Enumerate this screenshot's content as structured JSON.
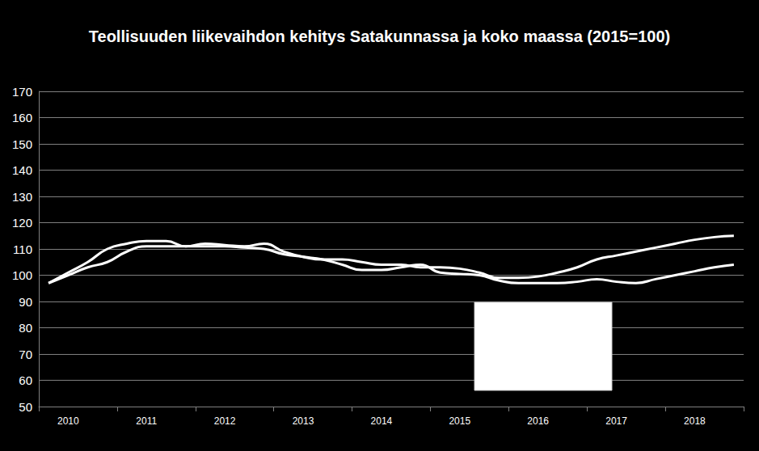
{
  "chart_data": {
    "type": "line",
    "title": "Teollisuuden liikevaihdon kehitys Satakunnassa ja koko maassa (2015=100)",
    "categories": [
      null,
      "2010",
      null,
      null,
      null,
      "2011",
      null,
      null,
      null,
      "2012",
      null,
      null,
      null,
      "2013",
      null,
      null,
      null,
      "2014",
      null,
      null,
      null,
      "2015",
      null,
      null,
      null,
      "2016",
      null,
      null,
      null,
      "2017",
      null,
      null,
      null,
      "2018",
      null,
      null
    ],
    "series": [
      {
        "color": "#ffffff",
        "values": [
          97,
          101,
          105,
          110,
          112,
          113,
          113,
          111,
          112,
          111.5,
          111,
          112,
          109,
          107,
          106,
          106,
          105,
          104,
          104,
          103,
          103,
          102.5,
          101,
          99,
          99,
          99.5,
          101,
          103,
          106,
          107.5,
          109,
          110.5,
          112,
          113.5,
          114.5,
          115
        ]
      },
      {
        "color": "#ffffff",
        "values": [
          97,
          100,
          103,
          105,
          109,
          111,
          111,
          111,
          111,
          111,
          110.5,
          110,
          108,
          107,
          106,
          104,
          102,
          102,
          103,
          104,
          101,
          100.5,
          100,
          98,
          97,
          97,
          97,
          97.5,
          98.5,
          97.5,
          97,
          98.5,
          100,
          101.5,
          103,
          104
        ]
      }
    ],
    "ylim": [
      50,
      170
    ],
    "yticks": [
      50,
      60,
      70,
      80,
      90,
      100,
      110,
      120,
      130,
      140,
      150,
      160,
      170
    ],
    "grid": true
  }
}
